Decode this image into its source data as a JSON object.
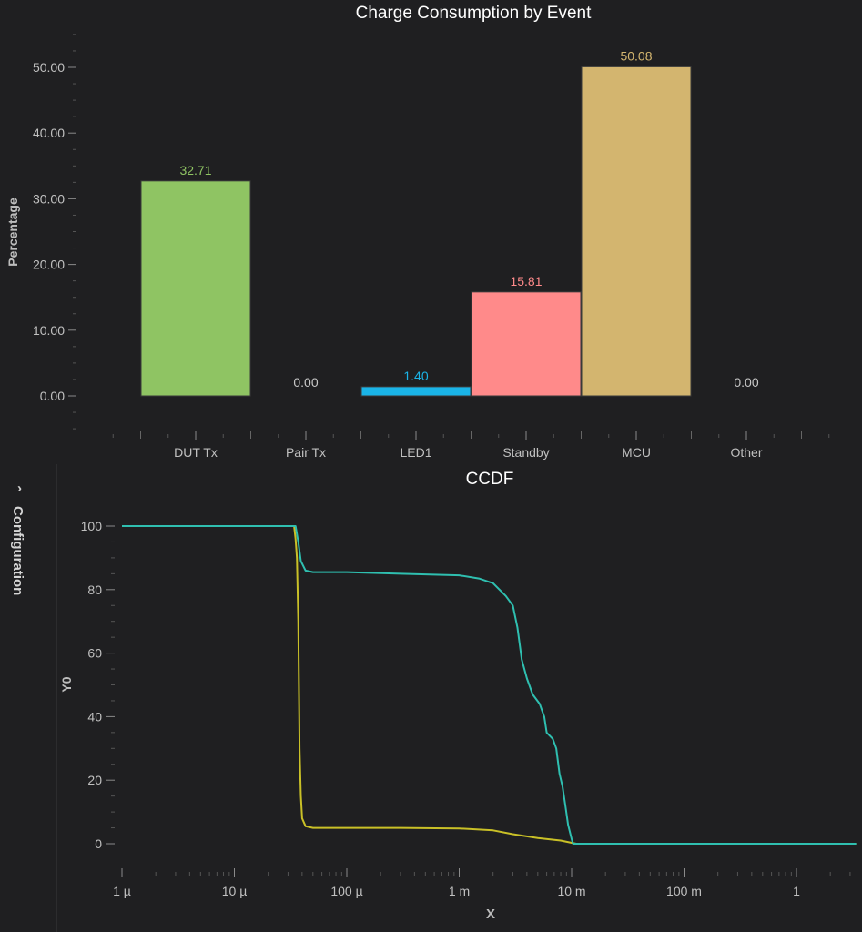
{
  "panel": {
    "configuration_label": "Configuration",
    "chevron": "›",
    "chevron_icon": "chevron-right-icon"
  },
  "chart_data": [
    {
      "type": "bar",
      "title": "Charge Consumption by Event",
      "xlabel": "",
      "ylabel": "Percentage",
      "ylim": [
        -5,
        55
      ],
      "yticks": [
        0,
        10,
        20,
        30,
        40,
        50
      ],
      "ytick_labels": [
        "0.00",
        "10.00",
        "20.00",
        "30.00",
        "40.00",
        "50.00"
      ],
      "categories": [
        "DUT Tx",
        "Pair Tx",
        "LED1",
        "Standby",
        "MCU",
        "Other"
      ],
      "values": [
        32.71,
        0.0,
        1.4,
        15.81,
        50.08,
        0.0
      ],
      "value_labels": [
        "32.71",
        "0.00",
        "1.40",
        "15.81",
        "50.08",
        "0.00"
      ],
      "colors": [
        "#8fc463",
        "#8fc463",
        "#1ab4e8",
        "#ff8a8a",
        "#d3b56f",
        "#d3b56f"
      ],
      "label_colors": [
        "#8fc463",
        "#c8c8c8",
        "#1ab4e8",
        "#ff8a8a",
        "#d3b56f",
        "#c8c8c8"
      ],
      "grid": false
    },
    {
      "type": "line",
      "title": "CCDF",
      "xlabel": "X",
      "ylabel": "Y0",
      "xscale": "log",
      "xlim": [
        1e-06,
        3.4
      ],
      "ylim": [
        -8,
        110
      ],
      "yticks": [
        0,
        20,
        40,
        60,
        80,
        100
      ],
      "ytick_labels": [
        "0",
        "20",
        "40",
        "60",
        "80",
        "100"
      ],
      "xticks": [
        1e-06,
        1e-05,
        0.0001,
        0.001,
        0.01,
        0.1,
        1
      ],
      "xtick_labels": [
        "1 µ",
        "10 µ",
        "100 µ",
        "1 m",
        "10 m",
        "100 m",
        "1"
      ],
      "series": [
        {
          "name": "series-yellow",
          "color": "#c9c027",
          "points": [
            [
              1e-06,
              100
            ],
            [
              3.4e-05,
              100
            ],
            [
              3.5e-05,
              96
            ],
            [
              3.6e-05,
              90
            ],
            [
              3.7e-05,
              70
            ],
            [
              3.75e-05,
              50
            ],
            [
              3.8e-05,
              30
            ],
            [
              3.9e-05,
              15
            ],
            [
              4e-05,
              8
            ],
            [
              4.3e-05,
              5.5
            ],
            [
              5e-05,
              5
            ],
            [
              0.0001,
              5
            ],
            [
              0.0003,
              5
            ],
            [
              0.001,
              4.8
            ],
            [
              0.002,
              4.2
            ],
            [
              0.003,
              3
            ],
            [
              0.005,
              1.8
            ],
            [
              0.008,
              1
            ],
            [
              0.01,
              0.3
            ],
            [
              0.011,
              0
            ],
            [
              3.4,
              0
            ]
          ]
        },
        {
          "name": "series-teal",
          "color": "#2fbfb0",
          "points": [
            [
              1e-06,
              100
            ],
            [
              3.5e-05,
              100
            ],
            [
              3.7e-05,
              95
            ],
            [
              3.9e-05,
              89
            ],
            [
              4.3e-05,
              86
            ],
            [
              5e-05,
              85.5
            ],
            [
              0.0001,
              85.5
            ],
            [
              0.0003,
              85
            ],
            [
              0.001,
              84.5
            ],
            [
              0.0015,
              83.5
            ],
            [
              0.002,
              82
            ],
            [
              0.0026,
              78
            ],
            [
              0.003,
              75
            ],
            [
              0.0033,
              68
            ],
            [
              0.0036,
              58
            ],
            [
              0.004,
              52
            ],
            [
              0.0045,
              47
            ],
            [
              0.0052,
              44
            ],
            [
              0.0057,
              40
            ],
            [
              0.006,
              35
            ],
            [
              0.0068,
              33
            ],
            [
              0.0073,
              30
            ],
            [
              0.0078,
              22
            ],
            [
              0.0083,
              18
            ],
            [
              0.0088,
              12
            ],
            [
              0.0093,
              6
            ],
            [
              0.01,
              1.5
            ],
            [
              0.0103,
              0
            ],
            [
              3.4,
              0
            ]
          ]
        }
      ]
    }
  ]
}
